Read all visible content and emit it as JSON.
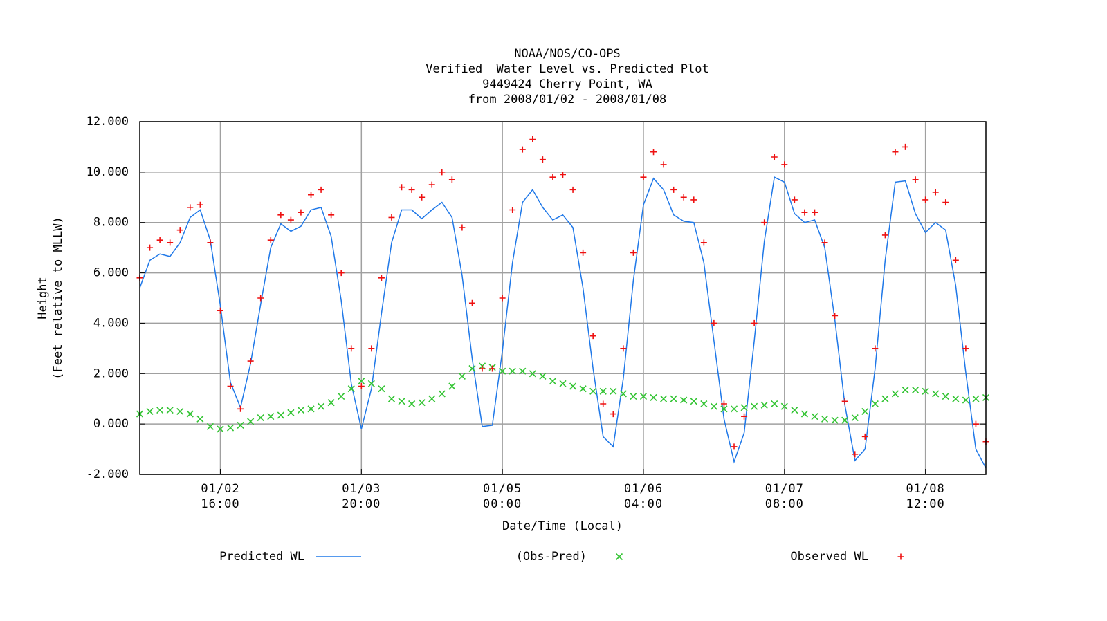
{
  "chart_data": {
    "type": "line",
    "title": [
      "NOAA/NOS/CO-OPS",
      "Verified  Water Level vs. Predicted Plot",
      "9449424 Cherry Point, WA",
      "from 2008/01/02 - 2008/01/08"
    ],
    "xlabel": "Date/Time (Local)",
    "ylabel": [
      "Height",
      "(Feet relative to MLLW)"
    ],
    "xlim": [
      "01/02 00:00",
      "01/09 00:00"
    ],
    "xticks": [
      "01/02 16:00",
      "01/03 20:00",
      "01/05 00:00",
      "01/06 04:00",
      "01/07 08:00",
      "01/08 12:00"
    ],
    "ylim": [
      -2,
      12
    ],
    "yticks": [
      {
        "value": -2,
        "label": "-2.000"
      },
      {
        "value": 0,
        "label": "0.000"
      },
      {
        "value": 2,
        "label": "2.000"
      },
      {
        "value": 4,
        "label": "4.000"
      },
      {
        "value": 6,
        "label": "6.000"
      },
      {
        "value": 8,
        "label": "8.000"
      },
      {
        "value": 10,
        "label": "10.000"
      },
      {
        "value": 12,
        "label": "12.000"
      }
    ],
    "grid": true,
    "x": [
      "01/02 00:00",
      "01/02 02:00",
      "01/02 04:00",
      "01/02 06:00",
      "01/02 08:00",
      "01/02 10:00",
      "01/02 12:00",
      "01/02 14:00",
      "01/02 16:00",
      "01/02 18:00",
      "01/02 20:00",
      "01/02 22:00",
      "01/03 00:00",
      "01/03 02:00",
      "01/03 04:00",
      "01/03 06:00",
      "01/03 08:00",
      "01/03 10:00",
      "01/03 12:00",
      "01/03 14:00",
      "01/03 16:00",
      "01/03 18:00",
      "01/03 20:00",
      "01/03 22:00",
      "01/04 00:00",
      "01/04 02:00",
      "01/04 04:00",
      "01/04 06:00",
      "01/04 08:00",
      "01/04 10:00",
      "01/04 12:00",
      "01/04 14:00",
      "01/04 16:00",
      "01/04 18:00",
      "01/04 20:00",
      "01/04 22:00",
      "01/05 00:00",
      "01/05 02:00",
      "01/05 04:00",
      "01/05 06:00",
      "01/05 08:00",
      "01/05 10:00",
      "01/05 12:00",
      "01/05 14:00",
      "01/05 16:00",
      "01/05 18:00",
      "01/05 20:00",
      "01/05 22:00",
      "01/06 00:00",
      "01/06 02:00",
      "01/06 04:00",
      "01/06 06:00",
      "01/06 08:00",
      "01/06 10:00",
      "01/06 12:00",
      "01/06 14:00",
      "01/06 16:00",
      "01/06 18:00",
      "01/06 20:00",
      "01/06 22:00",
      "01/07 00:00",
      "01/07 02:00",
      "01/07 04:00",
      "01/07 06:00",
      "01/07 08:00",
      "01/07 10:00",
      "01/07 12:00",
      "01/07 14:00",
      "01/07 16:00",
      "01/07 18:00",
      "01/07 20:00",
      "01/07 22:00",
      "01/08 00:00",
      "01/08 02:00",
      "01/08 04:00",
      "01/08 06:00",
      "01/08 08:00",
      "01/08 10:00",
      "01/08 12:00",
      "01/08 14:00",
      "01/08 16:00",
      "01/08 18:00",
      "01/08 20:00",
      "01/08 22:00",
      "01/09 00:00"
    ],
    "series": [
      {
        "name": "Predicted WL",
        "color": "#1f78e8",
        "marker": "line",
        "values": [
          5.4,
          6.5,
          6.75,
          6.65,
          7.2,
          8.2,
          8.5,
          7.3,
          4.7,
          1.65,
          0.65,
          2.4,
          4.75,
          7.0,
          7.95,
          7.65,
          7.85,
          8.5,
          8.6,
          7.45,
          4.9,
          1.6,
          -0.2,
          1.4,
          4.4,
          7.2,
          8.5,
          8.5,
          8.15,
          8.5,
          8.8,
          8.2,
          5.9,
          2.6,
          -0.1,
          -0.05,
          2.9,
          6.4,
          8.8,
          9.3,
          8.6,
          8.1,
          8.3,
          7.8,
          5.4,
          2.2,
          -0.5,
          -0.9,
          1.8,
          5.7,
          8.7,
          9.75,
          9.3,
          8.3,
          8.05,
          8.0,
          6.4,
          3.3,
          0.2,
          -1.5,
          -0.35,
          3.3,
          7.25,
          9.8,
          9.6,
          8.35,
          8.0,
          8.1,
          7.0,
          4.15,
          0.75,
          -1.45,
          -1.0,
          2.2,
          6.5,
          9.6,
          9.65,
          8.35,
          7.6,
          8.0,
          7.7,
          5.5,
          2.05,
          -1.0,
          -1.75
        ]
      },
      {
        "name": "(Obs-Pred)",
        "color": "#33c433",
        "marker": "x",
        "values": [
          0.4,
          0.5,
          0.55,
          0.55,
          0.5,
          0.4,
          0.2,
          -0.1,
          -0.2,
          -0.15,
          -0.05,
          0.1,
          0.25,
          0.3,
          0.35,
          0.45,
          0.55,
          0.6,
          0.7,
          0.85,
          1.1,
          1.4,
          1.7,
          1.6,
          1.4,
          1.0,
          0.9,
          0.8,
          0.85,
          1.0,
          1.2,
          1.5,
          1.9,
          2.2,
          2.3,
          2.25,
          2.1,
          2.1,
          2.1,
          2.0,
          1.9,
          1.7,
          1.6,
          1.5,
          1.4,
          1.3,
          1.3,
          1.3,
          1.2,
          1.1,
          1.1,
          1.05,
          1.0,
          1.0,
          0.95,
          0.9,
          0.8,
          0.7,
          0.6,
          0.6,
          0.65,
          0.7,
          0.75,
          0.8,
          0.7,
          0.55,
          0.4,
          0.3,
          0.2,
          0.15,
          0.15,
          0.25,
          0.5,
          0.8,
          1.0,
          1.2,
          1.35,
          1.35,
          1.3,
          1.2,
          1.1,
          1.0,
          0.95,
          1.0,
          1.05
        ]
      },
      {
        "name": "Observed WL",
        "color": "#ee1111",
        "marker": "+",
        "values": [
          5.8,
          7.0,
          7.3,
          7.2,
          7.7,
          8.6,
          8.7,
          7.2,
          4.5,
          1.5,
          0.6,
          2.5,
          5.0,
          7.3,
          8.3,
          8.1,
          8.4,
          9.1,
          9.3,
          8.3,
          6.0,
          3.0,
          1.5,
          3.0,
          5.8,
          8.2,
          9.4,
          9.3,
          9.0,
          9.5,
          10.0,
          9.7,
          7.8,
          4.8,
          2.2,
          2.2,
          5.0,
          8.5,
          10.9,
          11.3,
          10.5,
          9.8,
          9.9,
          9.3,
          6.8,
          3.5,
          0.8,
          0.4,
          3.0,
          6.8,
          9.8,
          10.8,
          10.3,
          9.3,
          9.0,
          8.9,
          7.2,
          4.0,
          0.8,
          -0.9,
          0.3,
          4.0,
          8.0,
          10.6,
          10.3,
          8.9,
          8.4,
          8.4,
          7.2,
          4.3,
          0.9,
          -1.2,
          -0.5,
          3.0,
          7.5,
          10.8,
          11.0,
          9.7,
          8.9,
          9.2,
          8.8,
          6.5,
          3.0,
          0.0,
          -0.7
        ]
      }
    ]
  }
}
